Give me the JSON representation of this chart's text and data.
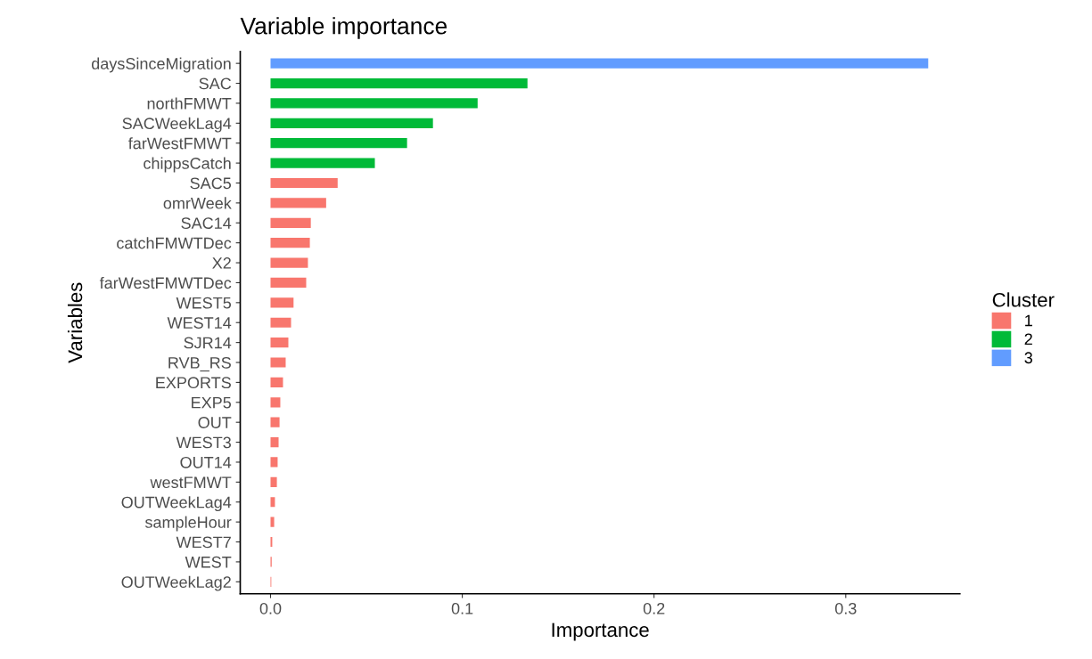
{
  "chart_data": {
    "type": "bar",
    "orientation": "horizontal",
    "title": "Variable importance",
    "xlabel": "Importance",
    "ylabel": "Variables",
    "legend_title": "Cluster",
    "legend": "right",
    "grid": false,
    "categories": [
      "daysSinceMigration",
      "SAC",
      "northFMWT",
      "SACWeekLag4",
      "farWestFMWT",
      "chippsCatch",
      "SAC5",
      "omrWeek",
      "SAC14",
      "catchFMWTDec",
      "X2",
      "farWestFMWTDec",
      "WEST5",
      "WEST14",
      "SJR14",
      "RVB_RS",
      "EXPORTS",
      "EXP5",
      "OUT",
      "WEST3",
      "OUT14",
      "westFMWT",
      "OUTWeekLag4",
      "sampleHour",
      "WEST7",
      "WEST",
      "OUTWeekLag2"
    ],
    "series": [
      {
        "name": "1",
        "color": "#f8766d",
        "values": [
          null,
          null,
          null,
          null,
          null,
          null,
          0.035,
          0.029,
          0.021,
          0.0205,
          0.0195,
          0.0186,
          0.012,
          0.0107,
          0.0093,
          0.0079,
          0.0065,
          0.0051,
          0.0047,
          0.0042,
          0.0037,
          0.0033,
          0.0023,
          0.0019,
          0.0009,
          0.0006,
          0.0004
        ]
      },
      {
        "name": "2",
        "color": "#00ba38",
        "values": [
          null,
          0.134,
          0.108,
          0.0847,
          0.0712,
          0.0544,
          null,
          null,
          null,
          null,
          null,
          null,
          null,
          null,
          null,
          null,
          null,
          null,
          null,
          null,
          null,
          null,
          null,
          null,
          null,
          null,
          null
        ]
      },
      {
        "name": "3",
        "color": "#619cff",
        "values": [
          0.343,
          null,
          null,
          null,
          null,
          null,
          null,
          null,
          null,
          null,
          null,
          null,
          null,
          null,
          null,
          null,
          null,
          null,
          null,
          null,
          null,
          null,
          null,
          null,
          null,
          null,
          null
        ]
      }
    ],
    "xlim": [
      -0.0158,
      0.3595
    ],
    "xticks": [
      {
        "value": 0,
        "label": "0.0"
      },
      {
        "value": 0.1,
        "label": "0.1"
      },
      {
        "value": 0.2,
        "label": "0.2"
      },
      {
        "value": 0.3,
        "label": "0.3"
      }
    ]
  }
}
